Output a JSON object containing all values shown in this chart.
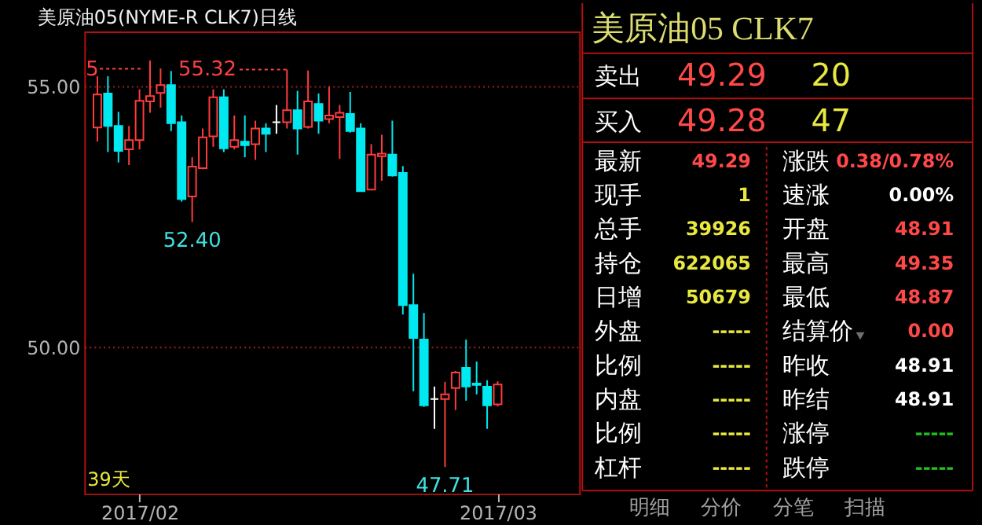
{
  "chart_data": [
    {
      "type": "candlestick",
      "title": "美原油05(NYME-R CLK7)日线",
      "categories": [
        null,
        null,
        null,
        null,
        "2017/02",
        null,
        null,
        null,
        null,
        null,
        null,
        null,
        null,
        null,
        null,
        null,
        null,
        null,
        null,
        null,
        null,
        null,
        null,
        null,
        null,
        null,
        null,
        null,
        null,
        null,
        null,
        null,
        null,
        null,
        null,
        null,
        null,
        null,
        "2017/03"
      ],
      "ohlc": [
        [
          54.21,
          55.19,
          53.94,
          54.84
        ],
        [
          54.86,
          55.19,
          53.74,
          54.24
        ],
        [
          54.24,
          54.51,
          53.54,
          53.76
        ],
        [
          53.79,
          54.24,
          53.49,
          53.97
        ],
        [
          53.97,
          54.94,
          53.79,
          54.72
        ],
        [
          54.71,
          55.49,
          54.49,
          54.81
        ],
        [
          54.87,
          55.34,
          54.59,
          55.02
        ],
        [
          55.02,
          55.29,
          54.14,
          54.29
        ],
        [
          54.31,
          54.44,
          52.79,
          52.84
        ],
        [
          52.89,
          53.64,
          52.4,
          53.46
        ],
        [
          53.43,
          54.19,
          53.41,
          54.02
        ],
        [
          54.04,
          54.94,
          53.84,
          54.79
        ],
        [
          54.79,
          54.94,
          53.74,
          53.81
        ],
        [
          53.84,
          54.44,
          53.79,
          53.97
        ],
        [
          53.94,
          54.44,
          53.64,
          53.87
        ],
        [
          53.89,
          54.34,
          53.59,
          54.19
        ],
        [
          54.19,
          54.29,
          53.74,
          54.09
        ],
        [
          54.31,
          54.64,
          54.09,
          54.31
        ],
        [
          54.31,
          55.32,
          54.19,
          54.54
        ],
        [
          54.54,
          54.91,
          53.69,
          54.19
        ],
        [
          54.22,
          55.3,
          54.19,
          54.71
        ],
        [
          54.66,
          54.86,
          54.09,
          54.34
        ],
        [
          54.37,
          54.99,
          54.29,
          54.44
        ],
        [
          54.41,
          54.64,
          53.61,
          54.49
        ],
        [
          54.47,
          54.89,
          54.11,
          54.14
        ],
        [
          54.19,
          54.29,
          52.99,
          52.99
        ],
        [
          53.02,
          53.89,
          53.02,
          53.69
        ],
        [
          53.66,
          54.07,
          53.19,
          53.71
        ],
        [
          53.69,
          54.34,
          53.27,
          53.29
        ],
        [
          53.34,
          53.47,
          50.63,
          50.81
        ],
        [
          50.81,
          51.41,
          49.16,
          50.18
        ],
        [
          50.15,
          50.66,
          48.86,
          48.89
        ],
        [
          49.01,
          49.25,
          48.44,
          49.01
        ],
        [
          49.01,
          49.34,
          47.71,
          49.1
        ],
        [
          49.22,
          49.55,
          48.8,
          49.52
        ],
        [
          49.61,
          50.15,
          48.98,
          49.25
        ],
        [
          49.31,
          49.73,
          49.1,
          49.28
        ],
        [
          49.25,
          49.37,
          48.44,
          48.89
        ],
        [
          48.91,
          49.35,
          48.87,
          49.29
        ]
      ],
      "colors": [
        "#ff3c3c",
        "#00e8f0",
        "#00e8f0",
        "#ff3c3c",
        "#ff3c3c",
        "#ff3c3c",
        "#ff3c3c",
        "#00e8f0",
        "#00e8f0",
        "#ff3c3c",
        "#ff3c3c",
        "#ff3c3c",
        "#00e8f0",
        "#ff3c3c",
        "#00e8f0",
        "#ff3c3c",
        "#00e8f0",
        "#ffffff",
        "#ff3c3c",
        "#00e8f0",
        "#ff3c3c",
        "#00e8f0",
        "#ff3c3c",
        "#ff3c3c",
        "#00e8f0",
        "#00e8f0",
        "#ff3c3c",
        "#ff3c3c",
        "#00e8f0",
        "#00e8f0",
        "#00e8f0",
        "#00e8f0",
        "#ffffff",
        "#ff3c3c",
        "#ff3c3c",
        "#00e8f0",
        "#00e8f0",
        "#00e8f0",
        "#ff3c3c"
      ],
      "ylim": [
        47.2,
        56.05
      ],
      "yticks": [
        {
          "value": 50,
          "label": "50.00"
        },
        {
          "value": 55,
          "label": "55.00"
        }
      ],
      "grid": "y",
      "annotations": [
        "5",
        "55.32",
        {
          "text": "52.40",
          "y": 52.4
        },
        {
          "text": "47.71",
          "y": 47.71
        },
        "39天"
      ]
    },
    {
      "type": "other",
      "title": "美原油05  CLK7",
      "annotations": [
        "卖出",
        "49.29",
        "20",
        "买入",
        "49.28",
        "47",
        "最新",
        "49.29",
        "涨跌",
        "0.38/0.78%",
        "现手",
        "1",
        "速涨",
        "0.00%",
        "总手",
        "39926",
        "开盘",
        "48.91",
        "持仓",
        "622065",
        "最高",
        "49.35",
        "日增",
        "50679",
        "最低",
        "48.87",
        "外盘",
        "-----",
        "结算价",
        "0.00",
        "比例",
        "-----",
        "昨收",
        "48.91",
        "内盘",
        "-----",
        "昨结",
        "48.91",
        "比例",
        "-----",
        "涨停",
        "-----",
        "杠杆",
        "-----",
        "跌停",
        "-----",
        "明细",
        "分价",
        "分笔",
        "扫描"
      ],
      "colors": [
        "#ffffff",
        "#ff4848",
        "#e8e840",
        "#ffffff",
        "#ff4848",
        "#e8e840",
        "#ffffff",
        "#ff4848",
        "#ffffff",
        "#ff4848",
        "#ffffff",
        "#e8e840",
        "#ffffff",
        "#ffffff",
        "#ffffff",
        "#e8e840",
        "#ffffff",
        "#ff4848",
        "#ffffff",
        "#e8e840",
        "#ffffff",
        "#ff4848",
        "#ffffff",
        "#e8e840",
        "#ffffff",
        "#ff4848",
        "#ffffff",
        "#e8e840",
        "#ffffff",
        "#ff4848",
        "#ffffff",
        "#e8e840",
        "#ffffff",
        "#ffffff",
        "#ffffff",
        "#e8e840",
        "#ffffff",
        "#ffffff",
        "#ffffff",
        "#e8e840",
        "#ffffff",
        "#20c020",
        "#ffffff",
        "#e8e840",
        "#ffffff",
        "#20c020",
        "#a0a0a0",
        "#a0a0a0",
        "#a0a0a0",
        "#a0a0a0"
      ]
    }
  ]
}
